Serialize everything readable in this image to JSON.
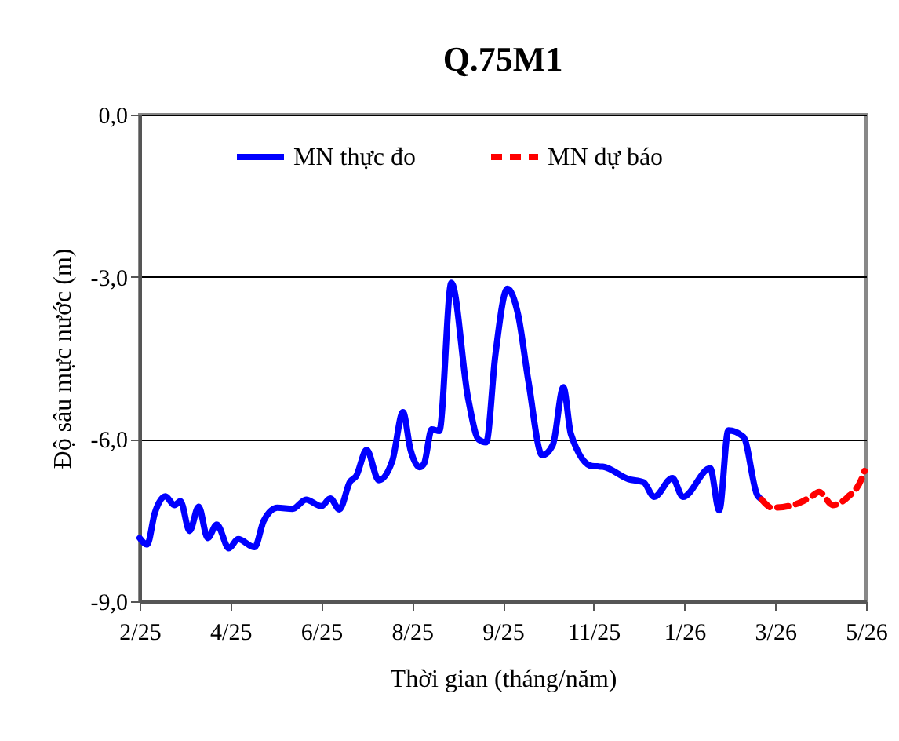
{
  "chart_data": {
    "type": "line",
    "title": "Q.75M1",
    "xlabel": "Thời gian (tháng/năm)",
    "ylabel": "Độ sâu mực nước (m)",
    "xlim": [
      "2025-02-01",
      "2026-05-27"
    ],
    "xticks": [
      {
        "value": "2025-02-01",
        "label": "2/25"
      },
      {
        "value": "2025-04-02",
        "label": "4/25"
      },
      {
        "value": "2025-06-01",
        "label": "6/25"
      },
      {
        "value": "2025-07-31",
        "label": "8/25"
      },
      {
        "value": "2025-09-29",
        "label": "9/25"
      },
      {
        "value": "2025-11-28",
        "label": "11/25"
      },
      {
        "value": "2026-01-27",
        "label": "1/26"
      },
      {
        "value": "2026-03-28",
        "label": "3/26"
      },
      {
        "value": "2026-05-27",
        "label": "5/26"
      }
    ],
    "ylim": [
      -9,
      0
    ],
    "yticks": [
      {
        "value": -9,
        "label": "-9,0"
      },
      {
        "value": -6,
        "label": "-6,0"
      },
      {
        "value": -3,
        "label": "-3,0"
      },
      {
        "value": 0,
        "label": "0,0"
      }
    ],
    "grid": "y",
    "legend": "top",
    "marker": "none",
    "series": [
      {
        "name": "MN thực đo",
        "color": "#0000ff",
        "line_style": "solid",
        "x": [
          "2025-02-01",
          "2025-02-06",
          "2025-02-11",
          "2025-02-18",
          "2025-02-24",
          "2025-02-28",
          "2025-03-06",
          "2025-03-12",
          "2025-03-18",
          "2025-03-24",
          "2025-04-01",
          "2025-04-07",
          "2025-04-18",
          "2025-04-24",
          "2025-05-03",
          "2025-05-13",
          "2025-05-22",
          "2025-06-01",
          "2025-06-07",
          "2025-06-13",
          "2025-06-20",
          "2025-06-24",
          "2025-07-01",
          "2025-07-09",
          "2025-07-18",
          "2025-07-25",
          "2025-07-30",
          "2025-08-05",
          "2025-08-08",
          "2025-08-13",
          "2025-08-18",
          "2025-08-26",
          "2025-09-06",
          "2025-09-13",
          "2025-09-18",
          "2025-09-24",
          "2025-10-02",
          "2025-10-09",
          "2025-10-16",
          "2025-10-25",
          "2025-11-01",
          "2025-11-08",
          "2025-11-13",
          "2025-11-27",
          "2025-12-04",
          "2025-12-21",
          "2025-12-31",
          "2026-01-07",
          "2026-01-19",
          "2026-01-26",
          "2026-02-13",
          "2026-02-19",
          "2026-02-25",
          "2026-03-07",
          "2026-03-16",
          "2026-03-19"
        ],
        "values": [
          -7.83,
          -7.95,
          -7.37,
          -7.06,
          -7.22,
          -7.15,
          -7.7,
          -7.25,
          -7.83,
          -7.58,
          -8.02,
          -7.85,
          -8.0,
          -7.51,
          -7.27,
          -7.29,
          -7.12,
          -7.24,
          -7.1,
          -7.3,
          -6.79,
          -6.69,
          -6.2,
          -6.76,
          -6.4,
          -5.5,
          -6.2,
          -6.52,
          -6.45,
          -5.82,
          -5.85,
          -3.11,
          -5.24,
          -6.01,
          -6.06,
          -4.46,
          -3.22,
          -3.69,
          -4.95,
          -6.3,
          -6.11,
          -5.04,
          -5.91,
          -6.5,
          -6.51,
          -6.74,
          -6.8,
          -7.07,
          -6.72,
          -7.07,
          -6.54,
          -7.32,
          -5.84,
          -5.96,
          -7.03,
          -7.12
        ]
      },
      {
        "name": "MN dự báo",
        "color": "#ff0000",
        "line_style": "dashed",
        "x": [
          "2026-03-19",
          "2026-03-26",
          "2026-04-11",
          "2026-04-21",
          "2026-04-26",
          "2026-05-05",
          "2026-05-15",
          "2026-05-24",
          "2026-05-26"
        ],
        "values": [
          -7.12,
          -7.27,
          -7.2,
          -7.06,
          -6.98,
          -7.22,
          -7.07,
          -6.74,
          -6.59
        ]
      }
    ]
  }
}
